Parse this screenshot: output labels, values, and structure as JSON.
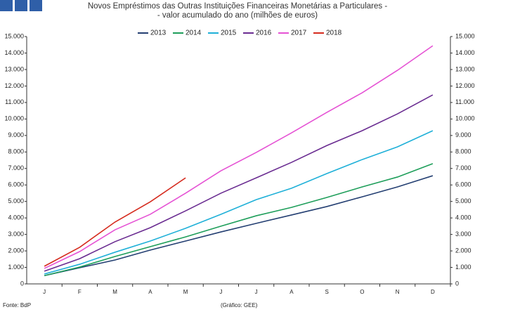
{
  "chart_data": {
    "type": "line",
    "title": "Novos Empréstimos das Outras Instituições Financeiras Monetárias a Particulares -",
    "subtitle": "- valor acumulado do ano (milhões de euros)",
    "source": "Fonte: BdP",
    "credit": "(Gráfico: GEE)",
    "categories": [
      "J",
      "F",
      "M",
      "A",
      "M",
      "J",
      "J",
      "A",
      "S",
      "O",
      "N",
      "D"
    ],
    "series": [
      {
        "name": "2013",
        "color": "#243f72",
        "values": [
          500,
          980,
          1450,
          2050,
          2600,
          3150,
          3670,
          4180,
          4690,
          5280,
          5880,
          6560
        ]
      },
      {
        "name": "2014",
        "color": "#1e9e5a",
        "values": [
          500,
          1020,
          1660,
          2260,
          2850,
          3500,
          4130,
          4640,
          5240,
          5880,
          6480,
          7290
        ]
      },
      {
        "name": "2015",
        "color": "#1fb0d8",
        "values": [
          600,
          1190,
          1920,
          2600,
          3370,
          4220,
          5110,
          5800,
          6690,
          7540,
          8310,
          9290
        ]
      },
      {
        "name": "2016",
        "color": "#6a2c91",
        "values": [
          770,
          1530,
          2560,
          3410,
          4430,
          5500,
          6430,
          7370,
          8390,
          9290,
          10310,
          11460
        ]
      },
      {
        "name": "2017",
        "color": "#e552d4",
        "values": [
          940,
          1960,
          3280,
          4220,
          5500,
          6860,
          7970,
          9160,
          10400,
          11590,
          12950,
          14440
        ]
      },
      {
        "name": "2018",
        "color": "#d52b1e",
        "values": [
          1070,
          2220,
          3750,
          4980,
          6430,
          null,
          null,
          null,
          null,
          null,
          null,
          null
        ]
      }
    ],
    "ylim": [
      0,
      15000
    ],
    "yticks": [
      0,
      {
        "value": 1000,
        "label": "1.000"
      },
      {
        "value": 2000,
        "label": "2.000"
      },
      {
        "value": 3000,
        "label": "3.000"
      },
      {
        "value": 4000,
        "label": "4.000"
      },
      {
        "value": 5000,
        "label": "5.000"
      },
      {
        "value": 6000,
        "label": "6.000"
      },
      {
        "value": 7000,
        "label": "7.000"
      },
      {
        "value": 8000,
        "label": "8.000"
      },
      {
        "value": 9000,
        "label": "9.000"
      },
      {
        "value": 10000,
        "label": "10.000"
      },
      {
        "value": 11000,
        "label": "11.000"
      },
      {
        "value": 12000,
        "label": "12.000"
      },
      {
        "value": 13000,
        "label": "13.000"
      },
      {
        "value": 14000,
        "label": "14.000"
      },
      {
        "value": 15000,
        "label": "15.000"
      }
    ],
    "y2lim": [
      0,
      15000
    ],
    "y2ticks": [
      0,
      {
        "value": 1000,
        "label": "1.000"
      },
      {
        "value": 2000,
        "label": "2.000"
      },
      {
        "value": 3000,
        "label": "3.000"
      },
      {
        "value": 4000,
        "label": "4.000"
      },
      {
        "value": 5000,
        "label": "5.000"
      },
      {
        "value": 6000,
        "label": "6.000"
      },
      {
        "value": 7000,
        "label": "7.000"
      },
      {
        "value": 8000,
        "label": "8.000"
      },
      {
        "value": 9000,
        "label": "9.000"
      },
      {
        "value": 10000,
        "label": "10.000"
      },
      {
        "value": 11000,
        "label": "11.000"
      },
      {
        "value": 12000,
        "label": "12.000"
      },
      {
        "value": 13000,
        "label": "13.000"
      },
      {
        "value": 14000,
        "label": "14.000"
      },
      {
        "value": 15000,
        "label": "15.000"
      }
    ],
    "legend": "top"
  }
}
